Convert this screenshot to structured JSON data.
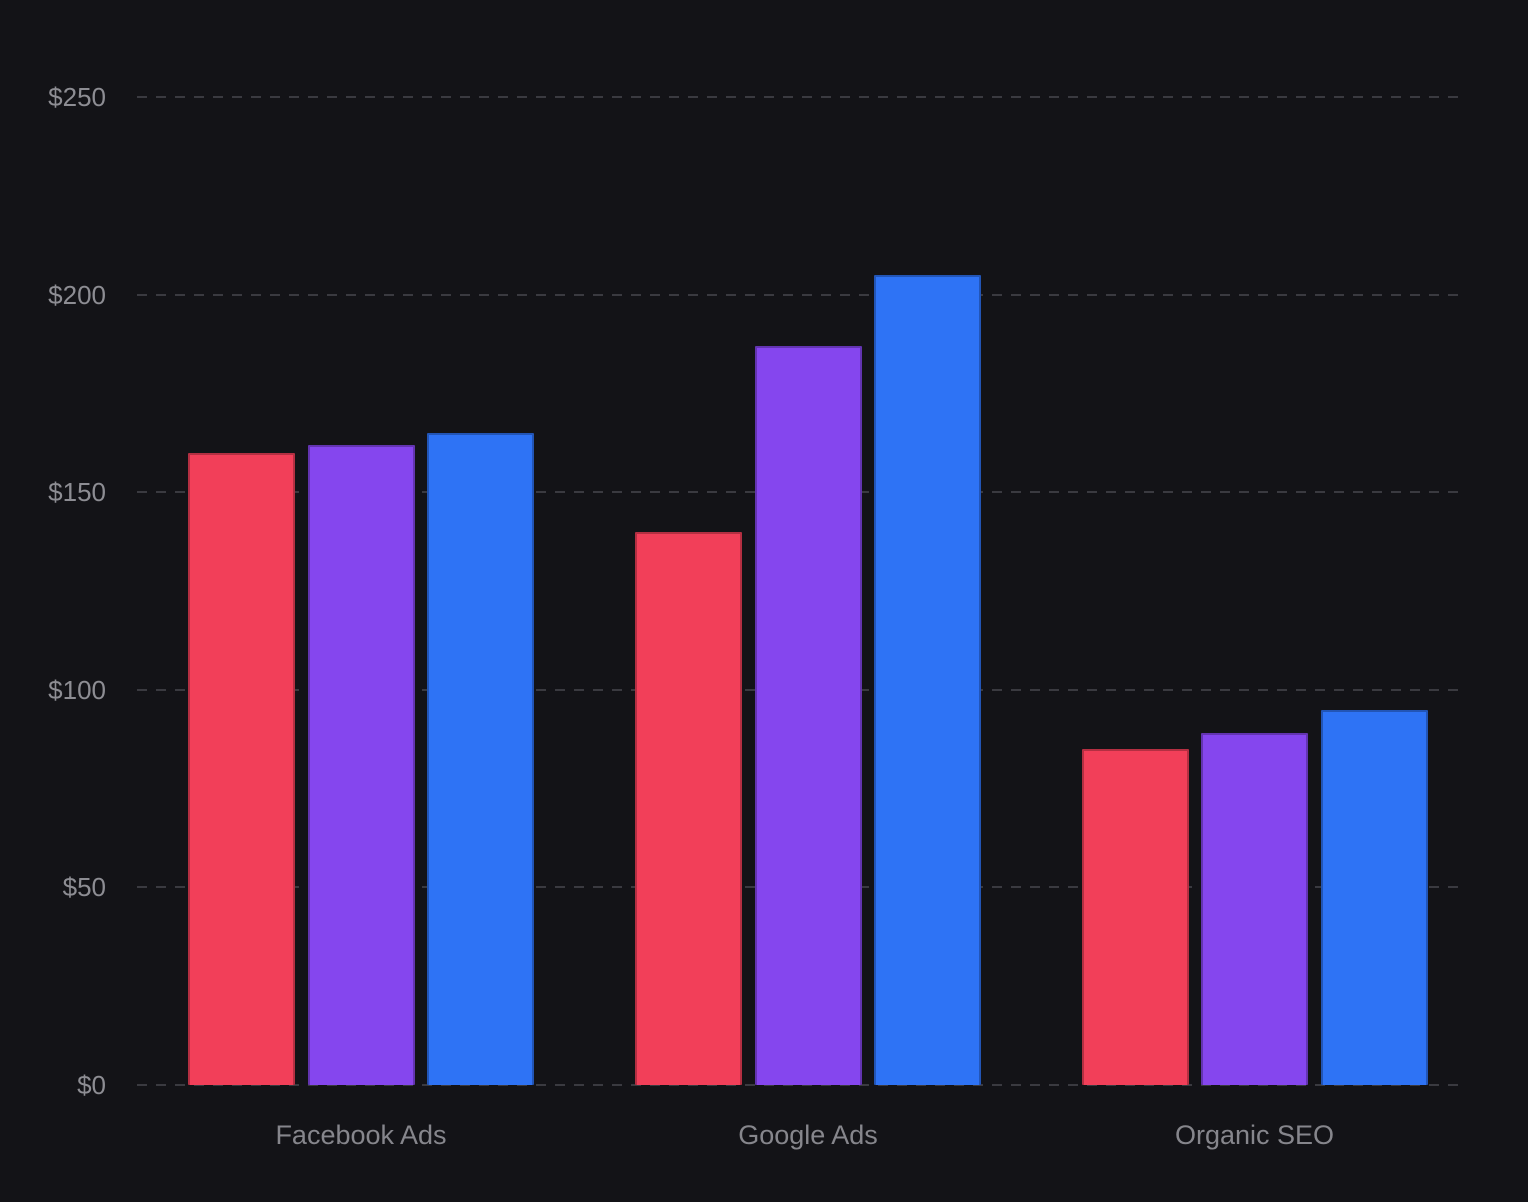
{
  "chart_data": {
    "type": "bar",
    "title": "",
    "categories": [
      "Facebook Ads",
      "Google Ads",
      "Organic SEO"
    ],
    "series": [
      {
        "name": "red",
        "color": "#f23f59",
        "values": [
          160,
          140,
          85
        ]
      },
      {
        "name": "purple",
        "color": "#8546ee",
        "values": [
          162,
          187,
          89
        ]
      },
      {
        "name": "blue",
        "color": "#2e73f5",
        "values": [
          165,
          205,
          95
        ]
      }
    ],
    "y_axis": {
      "tick_labels": [
        "$0",
        "$50",
        "$100",
        "$150",
        "$200",
        "$250"
      ],
      "tick_values": [
        0,
        50,
        100,
        150,
        200,
        250
      ],
      "range": [
        0,
        250
      ],
      "prefix": "$"
    },
    "grid": {
      "style": "dashed",
      "orientation": "horizontal",
      "color": "#3a3a40"
    },
    "legend": "none",
    "background": "#131317"
  }
}
